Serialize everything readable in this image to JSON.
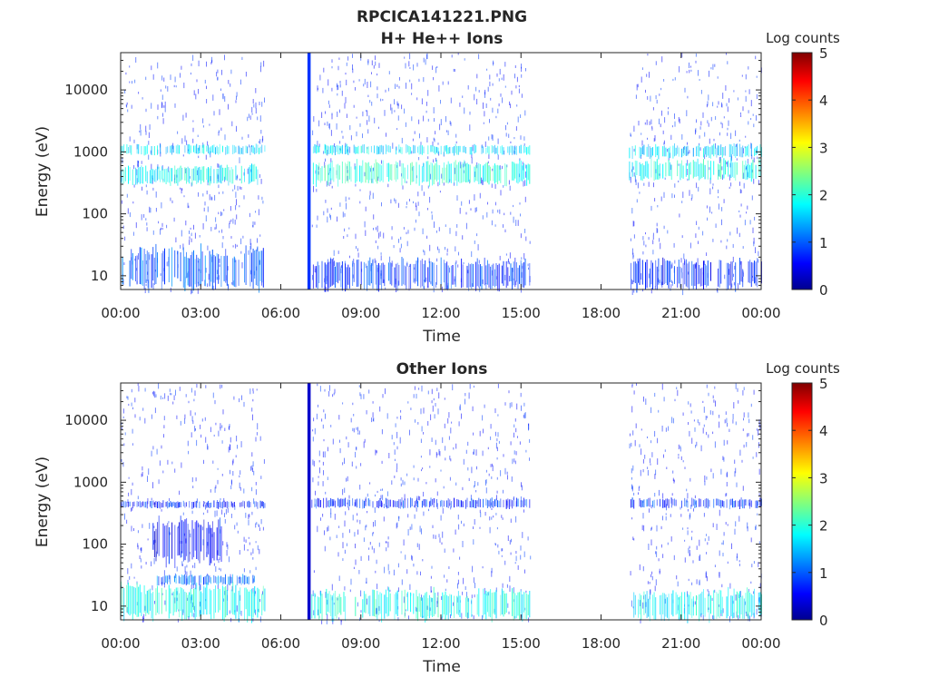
{
  "figure": {
    "filename": "RPCICA141221.PNG"
  },
  "colormap": {
    "stops": [
      "#00008f",
      "#0000ff",
      "#00ffff",
      "#ffff00",
      "#ff0000",
      "#800000"
    ],
    "colorbar_label": "Log counts",
    "colorbar_ticks": [
      "0",
      "1",
      "2",
      "3",
      "4",
      "5"
    ],
    "range": [
      0,
      5
    ]
  },
  "chart_data": [
    {
      "type": "heatmap",
      "title": "H+ He++ Ions",
      "xlabel": "Time",
      "ylabel": "Energy (eV)",
      "x_ticks": [
        "00:00",
        "03:00",
        "06:00",
        "09:00",
        "12:00",
        "15:00",
        "18:00",
        "21:00",
        "00:00"
      ],
      "xlim_hours": [
        0,
        24
      ],
      "y_scale": "log",
      "y_ticks": [
        "10",
        "100",
        "1000",
        "10000"
      ],
      "ylim": [
        6,
        40000
      ],
      "data_gaps_hours": [
        [
          5.4,
          7.0
        ],
        [
          15.35,
          19.05
        ]
      ],
      "bands": [
        {
          "x_hours": [
            0.0,
            5.4
          ],
          "energy_eV": [
            900,
            1300
          ],
          "log_counts": 1.6
        },
        {
          "x_hours": [
            0.0,
            5.4
          ],
          "energy_eV": [
            300,
            600
          ],
          "log_counts": 1.8
        },
        {
          "x_hours": [
            0.0,
            5.4
          ],
          "energy_eV": [
            6,
            28
          ],
          "log_counts": 1.0
        },
        {
          "x_hours": [
            7.15,
            15.35
          ],
          "energy_eV": [
            900,
            1300
          ],
          "log_counts": 1.7
        },
        {
          "x_hours": [
            7.15,
            15.35
          ],
          "energy_eV": [
            300,
            700
          ],
          "log_counts": 2.0
        },
        {
          "x_hours": [
            7.15,
            15.35
          ],
          "energy_eV": [
            6,
            18
          ],
          "log_counts": 0.8
        },
        {
          "x_hours": [
            19.05,
            24.0
          ],
          "energy_eV": [
            800,
            1300
          ],
          "log_counts": 1.6
        },
        {
          "x_hours": [
            19.05,
            24.0
          ],
          "energy_eV": [
            350,
            750
          ],
          "log_counts": 1.9
        },
        {
          "x_hours": [
            19.05,
            24.0
          ],
          "energy_eV": [
            6,
            18
          ],
          "log_counts": 0.7
        }
      ],
      "spike": {
        "x_hours": [
          7.0,
          7.12
        ],
        "energy_eV": [
          6,
          40000
        ],
        "log_counts": 0.8
      },
      "noise": {
        "log_counts": 0.5,
        "segments_hours": [
          [
            0.0,
            5.4
          ],
          [
            7.15,
            15.35
          ],
          [
            19.05,
            24.0
          ]
        ]
      }
    },
    {
      "type": "heatmap",
      "title": "Other Ions",
      "xlabel": "Time",
      "ylabel": "Energy (eV)",
      "x_ticks": [
        "00:00",
        "03:00",
        "06:00",
        "09:00",
        "12:00",
        "15:00",
        "18:00",
        "21:00",
        "00:00"
      ],
      "xlim_hours": [
        0,
        24
      ],
      "y_scale": "log",
      "y_ticks": [
        "10",
        "100",
        "1000",
        "10000"
      ],
      "ylim": [
        6,
        40000
      ],
      "data_gaps_hours": [
        [
          5.4,
          7.0
        ],
        [
          15.35,
          19.05
        ]
      ],
      "bands": [
        {
          "x_hours": [
            0.0,
            5.4
          ],
          "energy_eV": [
            6,
            22
          ],
          "log_counts": 1.9
        },
        {
          "x_hours": [
            1.3,
            5.0
          ],
          "energy_eV": [
            22,
            32
          ],
          "log_counts": 1.1
        },
        {
          "x_hours": [
            1.2,
            3.8
          ],
          "energy_eV": [
            50,
            250
          ],
          "log_counts": 0.6
        },
        {
          "x_hours": [
            0.0,
            5.4
          ],
          "energy_eV": [
            380,
            500
          ],
          "log_counts": 0.7
        },
        {
          "x_hours": [
            7.15,
            15.35
          ],
          "energy_eV": [
            380,
            550
          ],
          "log_counts": 0.8
        },
        {
          "x_hours": [
            7.15,
            15.35
          ],
          "energy_eV": [
            6,
            18
          ],
          "log_counts": 1.9
        },
        {
          "x_hours": [
            19.05,
            24.0
          ],
          "energy_eV": [
            380,
            550
          ],
          "log_counts": 0.8
        },
        {
          "x_hours": [
            19.05,
            24.0
          ],
          "energy_eV": [
            6,
            18
          ],
          "log_counts": 1.8
        }
      ],
      "spike": {
        "x_hours": [
          7.0,
          7.12
        ],
        "energy_eV": [
          6,
          40000
        ],
        "log_counts": 0.3
      },
      "noise": {
        "log_counts": 0.5,
        "segments_hours": [
          [
            0.0,
            5.4
          ],
          [
            7.15,
            15.35
          ],
          [
            19.05,
            24.0
          ]
        ]
      }
    }
  ]
}
